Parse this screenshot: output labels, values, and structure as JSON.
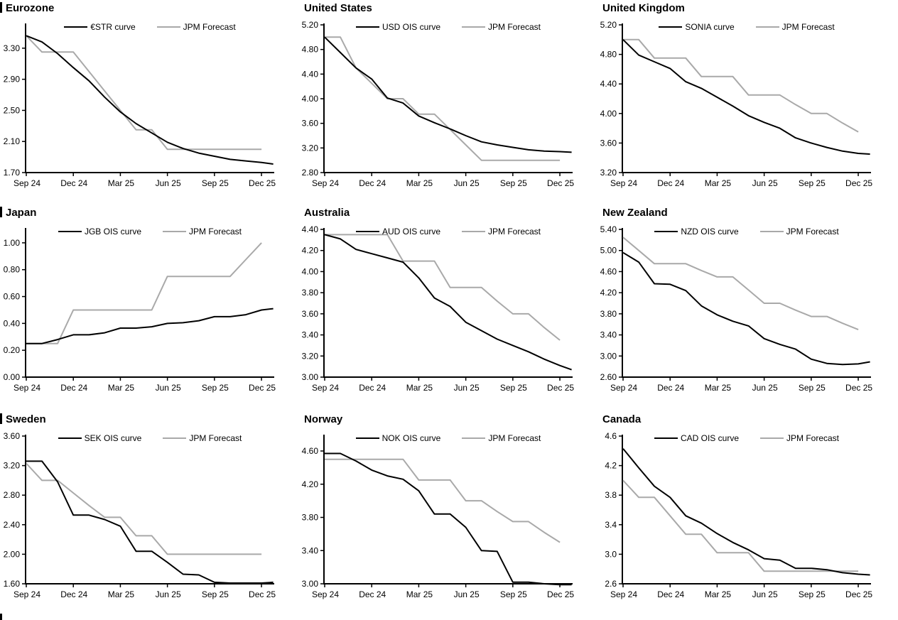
{
  "colors": {
    "background": "#ffffff",
    "axis": "#000000",
    "curve_line": "#000000",
    "forecast_line": "#a9a9a9"
  },
  "chart_data": [
    {
      "type": "line",
      "title": "Eurozone",
      "frequency": "monthly",
      "x_labels": [
        "Sep 24",
        "Dec 24",
        "Mar 25",
        "Jun 25",
        "Sep 25",
        "Dec 25"
      ],
      "ylim": [
        1.7,
        3.6
      ],
      "yticks": [
        "1.70",
        "2.10",
        "2.50",
        "2.90",
        "3.30"
      ],
      "grid": false,
      "legend_position": "top-center",
      "series": [
        {
          "name": "€STR curve",
          "color": "#000000",
          "values": [
            3.46,
            3.38,
            3.23,
            3.05,
            2.88,
            2.67,
            2.48,
            2.33,
            2.21,
            2.09,
            2.01,
            1.95,
            1.91,
            1.87,
            1.85,
            1.83,
            1.81
          ]
        },
        {
          "name": "JPM Forecast",
          "color": "#a9a9a9",
          "values": [
            3.46,
            3.25,
            3.25,
            3.25,
            3.0,
            2.75,
            2.5,
            2.25,
            2.25,
            2.0,
            2.0,
            2.0,
            2.0,
            2.0,
            2.0,
            2.0
          ]
        }
      ]
    },
    {
      "type": "line",
      "title": "United States",
      "frequency": "monthly",
      "x_labels": [
        "Sep 24",
        "Dec 24",
        "Mar 25",
        "Jun 25",
        "Sep 25",
        "Dec 25"
      ],
      "ylim": [
        2.8,
        5.2
      ],
      "yticks": [
        "2.80",
        "3.20",
        "3.60",
        "4.00",
        "4.40",
        "4.80",
        "5.20"
      ],
      "grid": false,
      "legend_position": "top-center",
      "series": [
        {
          "name": "USD OIS curve",
          "color": "#000000",
          "values": [
            5.0,
            4.75,
            4.5,
            4.32,
            4.01,
            3.93,
            3.72,
            3.61,
            3.51,
            3.4,
            3.3,
            3.25,
            3.21,
            3.17,
            3.15,
            3.14,
            3.13
          ]
        },
        {
          "name": "JPM Forecast",
          "color": "#a9a9a9",
          "values": [
            5.0,
            5.0,
            4.5,
            4.25,
            4.0,
            4.0,
            3.75,
            3.75,
            3.5,
            3.25,
            3.0,
            3.0,
            3.0,
            3.0,
            3.0,
            3.0
          ]
        }
      ]
    },
    {
      "type": "line",
      "title": "United Kingdom",
      "frequency": "monthly",
      "x_labels": [
        "Sep 24",
        "Dec 24",
        "Mar 25",
        "Jun 25",
        "Sep 25",
        "Dec 25"
      ],
      "ylim": [
        3.2,
        5.2
      ],
      "yticks": [
        "3.20",
        "3.60",
        "4.00",
        "4.40",
        "4.80",
        "5.20"
      ],
      "grid": false,
      "legend_position": "top-center",
      "series": [
        {
          "name": "SONIA curve",
          "color": "#000000",
          "values": [
            5.0,
            4.79,
            4.7,
            4.61,
            4.43,
            4.34,
            4.22,
            4.1,
            3.97,
            3.88,
            3.8,
            3.67,
            3.6,
            3.54,
            3.49,
            3.46,
            3.45
          ]
        },
        {
          "name": "JPM Forecast",
          "color": "#a9a9a9",
          "values": [
            5.0,
            5.0,
            4.75,
            4.75,
            4.75,
            4.5,
            4.5,
            4.5,
            4.25,
            4.25,
            4.25,
            4.12,
            4.0,
            4.0,
            3.87,
            3.75
          ]
        }
      ]
    },
    {
      "type": "line",
      "title": "Japan",
      "frequency": "monthly",
      "x_labels": [
        "Sep 24",
        "Dec 24",
        "Mar 25",
        "Jun 25",
        "Sep 25",
        "Dec 25"
      ],
      "ylim": [
        0.0,
        1.1
      ],
      "yticks": [
        "0.00",
        "0.20",
        "0.40",
        "0.60",
        "0.80",
        "1.00"
      ],
      "grid": false,
      "legend_position": "top-center",
      "series": [
        {
          "name": "JGB OIS curve",
          "color": "#000000",
          "values": [
            0.25,
            0.25,
            0.28,
            0.315,
            0.315,
            0.33,
            0.365,
            0.365,
            0.375,
            0.4,
            0.405,
            0.42,
            0.45,
            0.45,
            0.465,
            0.5,
            0.51
          ]
        },
        {
          "name": "JPM Forecast",
          "color": "#a9a9a9",
          "values": [
            0.25,
            0.25,
            0.25,
            0.5,
            0.5,
            0.5,
            0.5,
            0.5,
            0.5,
            0.75,
            0.75,
            0.75,
            0.75,
            0.75,
            0.875,
            1.0
          ]
        }
      ]
    },
    {
      "type": "line",
      "title": "Australia",
      "frequency": "monthly",
      "x_labels": [
        "Sep 24",
        "Dec 24",
        "Mar 25",
        "Jun 25",
        "Sep 25",
        "Dec 25"
      ],
      "ylim": [
        3.0,
        4.4
      ],
      "yticks": [
        "3.00",
        "3.20",
        "3.40",
        "3.60",
        "3.80",
        "4.00",
        "4.20",
        "4.40"
      ],
      "grid": false,
      "legend_position": "top-center",
      "series": [
        {
          "name": "AUD OIS curve",
          "color": "#000000",
          "values": [
            4.35,
            4.31,
            4.21,
            4.17,
            4.13,
            4.09,
            3.94,
            3.75,
            3.67,
            3.52,
            3.44,
            3.36,
            3.3,
            3.24,
            3.17,
            3.11,
            3.07
          ]
        },
        {
          "name": "JPM Forecast",
          "color": "#a9a9a9",
          "values": [
            4.35,
            4.35,
            4.35,
            4.35,
            4.35,
            4.1,
            4.1,
            4.1,
            3.85,
            3.85,
            3.85,
            3.72,
            3.6,
            3.6,
            3.47,
            3.35
          ]
        }
      ]
    },
    {
      "type": "line",
      "title": "New Zealand",
      "frequency": "monthly",
      "x_labels": [
        "Sep 24",
        "Dec 24",
        "Mar 25",
        "Jun 25",
        "Sep 25",
        "Dec 25"
      ],
      "ylim": [
        2.6,
        5.4
      ],
      "yticks": [
        "2.60",
        "3.00",
        "3.40",
        "3.80",
        "4.20",
        "4.60",
        "5.00",
        "5.40"
      ],
      "grid": false,
      "legend_position": "top-center",
      "series": [
        {
          "name": "NZD OIS curve",
          "color": "#000000",
          "values": [
            4.96,
            4.78,
            4.37,
            4.36,
            4.24,
            3.95,
            3.78,
            3.66,
            3.57,
            3.33,
            3.22,
            3.13,
            2.94,
            2.86,
            2.84,
            2.85,
            2.89
          ]
        },
        {
          "name": "JPM Forecast",
          "color": "#a9a9a9",
          "values": [
            5.25,
            5.0,
            4.75,
            4.75,
            4.75,
            4.62,
            4.5,
            4.5,
            4.25,
            4.0,
            4.0,
            3.87,
            3.75,
            3.75,
            3.62,
            3.5
          ]
        }
      ]
    },
    {
      "type": "line",
      "title": "Sweden",
      "frequency": "monthly",
      "x_labels": [
        "Sep 24",
        "Dec 24",
        "Mar 25",
        "Jun 25",
        "Sep 25",
        "Dec 25"
      ],
      "ylim": [
        1.6,
        3.6
      ],
      "yticks": [
        "1.60",
        "2.00",
        "2.40",
        "2.80",
        "3.20",
        "3.60"
      ],
      "grid": false,
      "legend_position": "top-center",
      "series": [
        {
          "name": "SEK OIS curve",
          "color": "#000000",
          "values": [
            3.26,
            3.26,
            2.98,
            2.53,
            2.53,
            2.47,
            2.38,
            2.04,
            2.04,
            1.89,
            1.73,
            1.72,
            1.62,
            1.61,
            1.61,
            1.61,
            1.62
          ]
        },
        {
          "name": "JPM Forecast",
          "color": "#a9a9a9",
          "values": [
            3.23,
            3.0,
            3.0,
            2.83,
            2.66,
            2.5,
            2.5,
            2.25,
            2.25,
            2.0,
            2.0,
            2.0,
            2.0,
            2.0,
            2.0,
            2.0
          ]
        }
      ]
    },
    {
      "type": "line",
      "title": "Norway",
      "frequency": "monthly",
      "x_labels": [
        "Sep 24",
        "Dec 24",
        "Mar 25",
        "Jun 25",
        "Sep 25",
        "Dec 25"
      ],
      "ylim": [
        3.0,
        4.78
      ],
      "yticks": [
        "3.00",
        "3.40",
        "3.80",
        "4.20",
        "4.60"
      ],
      "grid": false,
      "legend_position": "top-center",
      "series": [
        {
          "name": "NOK OIS curve",
          "color": "#000000",
          "values": [
            4.57,
            4.57,
            4.48,
            4.37,
            4.3,
            4.26,
            4.12,
            3.84,
            3.84,
            3.68,
            3.4,
            3.39,
            3.02,
            3.02,
            3.0,
            2.99,
            2.99
          ]
        },
        {
          "name": "JPM Forecast",
          "color": "#a9a9a9",
          "values": [
            4.5,
            4.5,
            4.5,
            4.5,
            4.5,
            4.5,
            4.25,
            4.25,
            4.25,
            4.0,
            4.0,
            3.87,
            3.75,
            3.75,
            3.62,
            3.5
          ]
        }
      ]
    },
    {
      "type": "line",
      "title": "Canada",
      "frequency": "monthly",
      "x_labels": [
        "Sep 24",
        "Dec 24",
        "Mar 25",
        "Jun 25",
        "Sep 25",
        "Dec 25"
      ],
      "ylim": [
        2.6,
        4.6
      ],
      "yticks": [
        "2.6",
        "3.0",
        "3.4",
        "3.8",
        "4.2",
        "4.6"
      ],
      "grid": false,
      "legend_position": "top-center",
      "series": [
        {
          "name": "CAD OIS curve",
          "color": "#000000",
          "values": [
            4.43,
            4.17,
            3.92,
            3.77,
            3.52,
            3.42,
            3.28,
            3.16,
            3.06,
            2.94,
            2.92,
            2.81,
            2.81,
            2.79,
            2.75,
            2.73,
            2.72
          ]
        },
        {
          "name": "JPM Forecast",
          "color": "#a9a9a9",
          "values": [
            4.0,
            3.77,
            3.77,
            3.52,
            3.27,
            3.27,
            3.02,
            3.02,
            3.02,
            2.77,
            2.77,
            2.77,
            2.77,
            2.77,
            2.77,
            2.77
          ]
        }
      ]
    }
  ]
}
